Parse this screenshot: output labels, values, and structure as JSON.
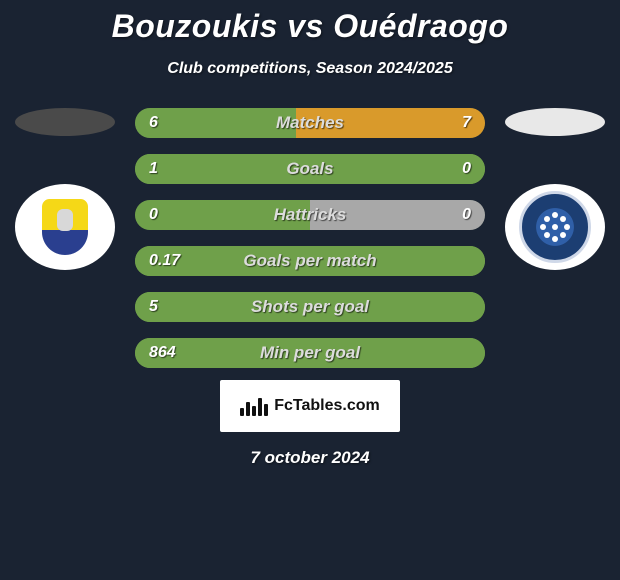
{
  "title": "Bouzoukis vs Ouédraogo",
  "subtitle": "Club competitions, Season 2024/2025",
  "colors": {
    "background": "#1a2332",
    "left_base": "#3e5640",
    "left_accent": "#6fa04a",
    "right_base": "#a8a8a8",
    "right_accent": "#d99a2b",
    "text": "#ffffff",
    "label_text": "#dcdcdc"
  },
  "left_player": {
    "ellipse_color": "#4a4a4a"
  },
  "right_player": {
    "ellipse_color": "#e8e8e8"
  },
  "stats": [
    {
      "label": "Matches",
      "left_value": "6",
      "right_value": "7",
      "left_pct": 46,
      "right_pct": 54,
      "full_left": false
    },
    {
      "label": "Goals",
      "left_value": "1",
      "right_value": "0",
      "left_pct": 100,
      "right_pct": 0,
      "full_left": true,
      "right_light": true
    },
    {
      "label": "Hattricks",
      "left_value": "0",
      "right_value": "0",
      "left_pct": 50,
      "right_pct": 50,
      "full_left": false
    },
    {
      "label": "Goals per match",
      "left_value": "0.17",
      "right_value": "",
      "left_pct": 100,
      "right_pct": 0,
      "full_left": true
    },
    {
      "label": "Shots per goal",
      "left_value": "5",
      "right_value": "",
      "left_pct": 100,
      "right_pct": 0,
      "full_left": true
    },
    {
      "label": "Min per goal",
      "left_value": "864",
      "right_value": "",
      "left_pct": 100,
      "right_pct": 0,
      "full_left": true
    }
  ],
  "brand": "FcTables.com",
  "date": "7 october 2024",
  "bar_style": {
    "height": 30,
    "radius": 16,
    "gap": 16,
    "label_fontsize": 17,
    "value_fontsize": 16
  }
}
